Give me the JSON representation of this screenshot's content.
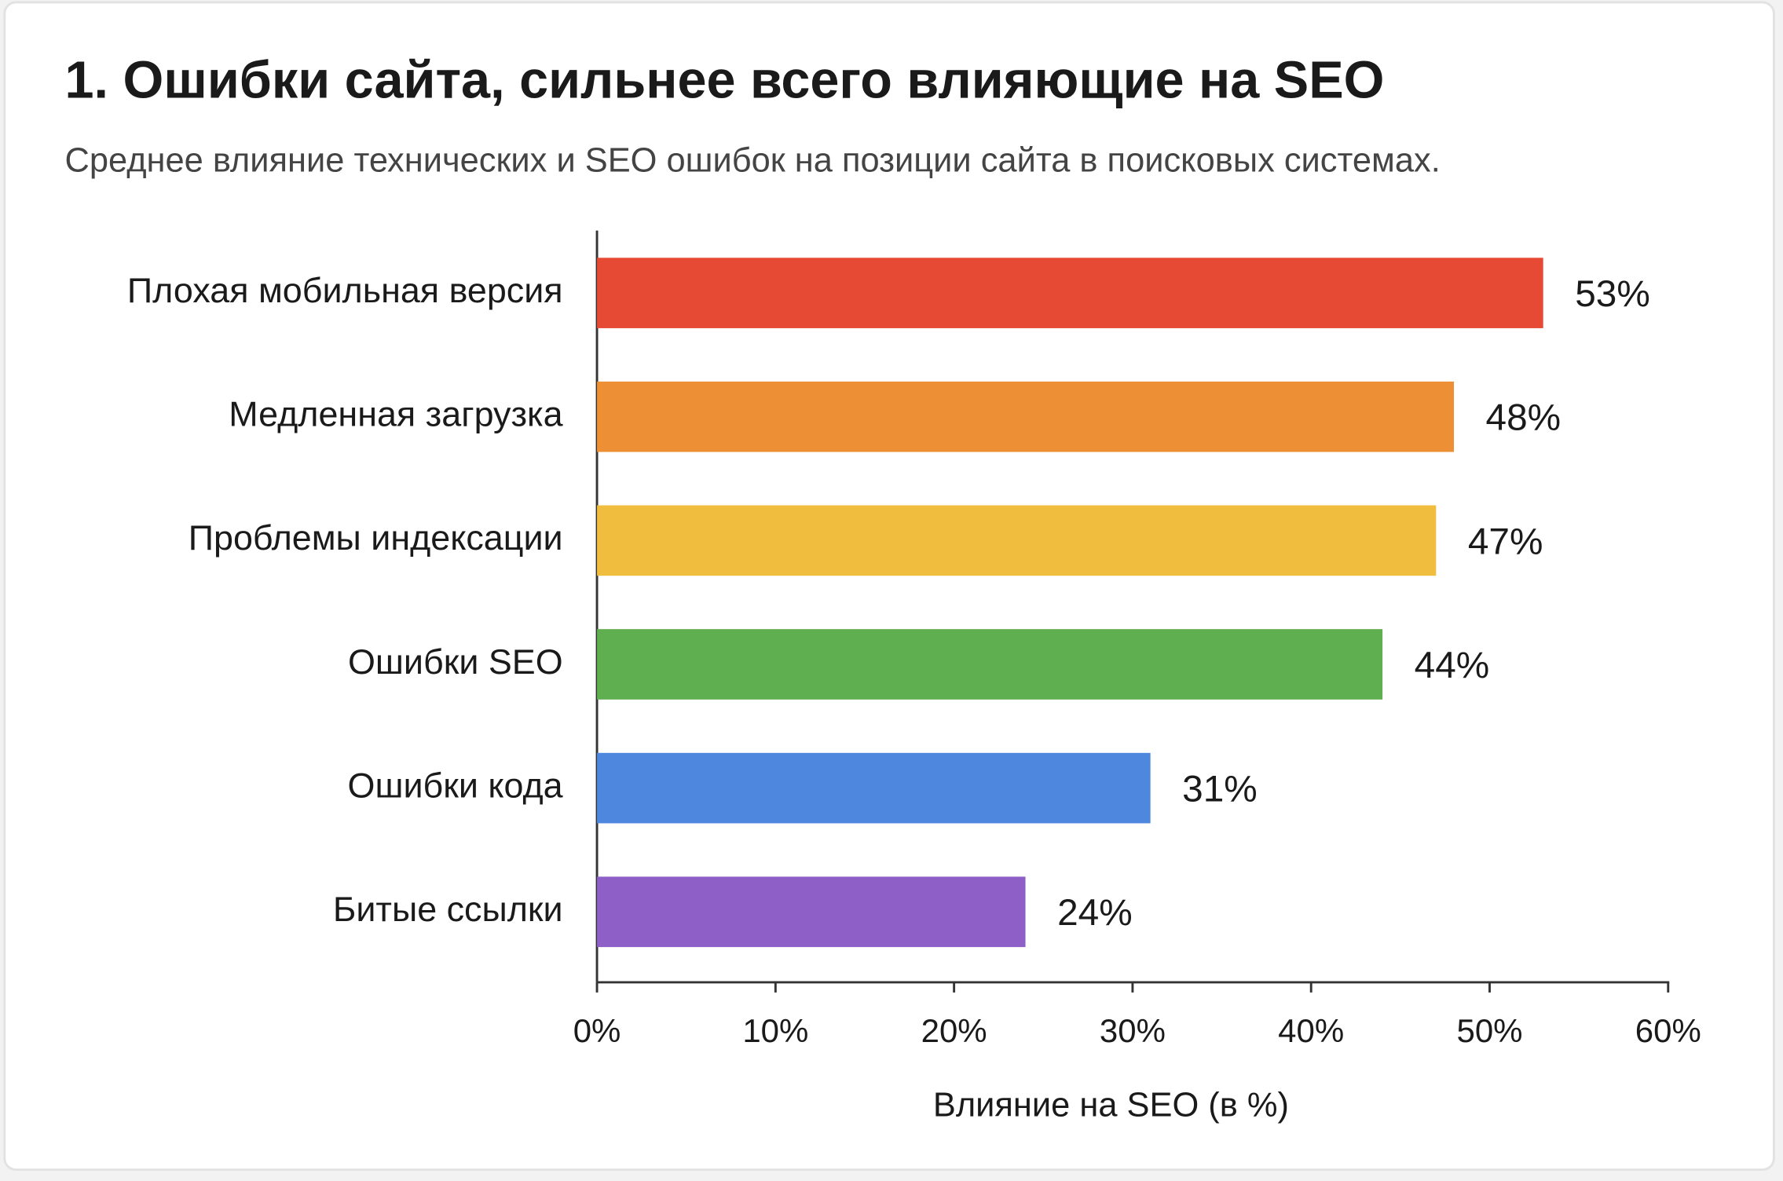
{
  "chart_data": {
    "type": "hbar",
    "title": "1. Ошибки сайта, сильнее всего влияющие на SEO",
    "subtitle": "Среднее влияние технических и SEO ошибок на позиции сайта в поисковых системах.",
    "x_label": "Влияние на SEO (в %)",
    "categories": [
      "Плохая мобильная версия",
      "Медленная загрузка",
      "Проблемы индексации",
      "Ошибки SEO",
      "Ошибки кода",
      "Битые ссылки"
    ],
    "values": [
      53,
      48,
      47,
      44,
      31,
      24
    ],
    "value_labels": [
      "53%",
      "48%",
      "47%",
      "44%",
      "31%",
      "24%"
    ],
    "colors": [
      "#e64a35",
      "#ec8f35",
      "#f0bd3e",
      "#5fae4f",
      "#4e88de",
      "#8e5fc6"
    ],
    "xlim": [
      0,
      60
    ],
    "xticks": [
      {
        "value": 0,
        "label": "0%"
      },
      {
        "value": 10,
        "label": "10%"
      },
      {
        "value": 20,
        "label": "20%"
      },
      {
        "value": 30,
        "label": "30%"
      },
      {
        "value": 40,
        "label": "40%"
      },
      {
        "value": 50,
        "label": "50%"
      },
      {
        "value": 60,
        "label": "60%"
      }
    ]
  }
}
